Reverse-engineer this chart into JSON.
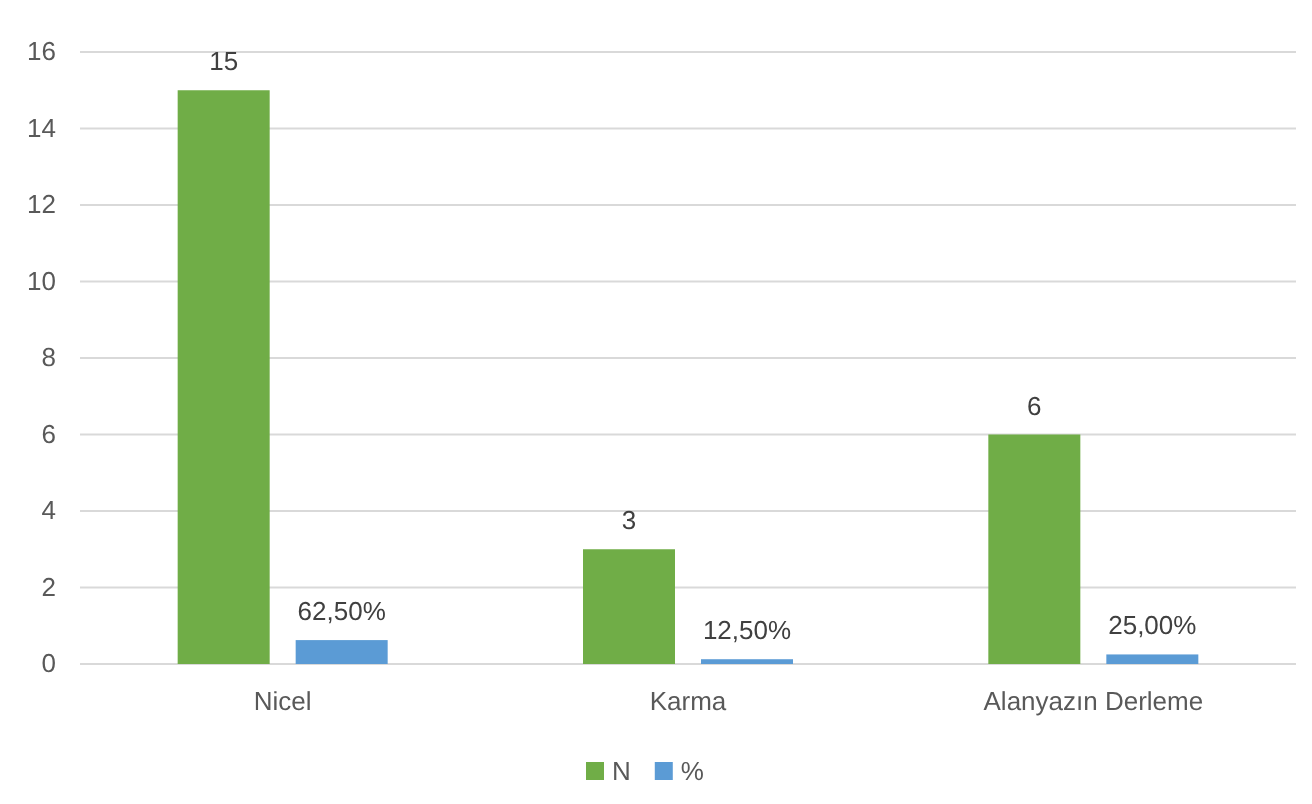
{
  "chart_data": {
    "type": "bar",
    "categories": [
      "Nicel",
      "Karma",
      "Alanyazın Derleme"
    ],
    "series": [
      {
        "name": "N",
        "color": "#70ad47",
        "values": [
          15,
          3,
          6
        ],
        "value_labels": [
          "15",
          "3",
          "6"
        ]
      },
      {
        "name": "%",
        "color": "#5b9bd5",
        "values": [
          0.625,
          0.125,
          0.25
        ],
        "value_labels": [
          "62,50%",
          "12,50%",
          "25,00%"
        ]
      }
    ],
    "ylim": [
      0,
      16
    ],
    "yticks": [
      0,
      2,
      4,
      6,
      8,
      10,
      12,
      14,
      16
    ],
    "grid": "y",
    "legend": "bottom"
  }
}
